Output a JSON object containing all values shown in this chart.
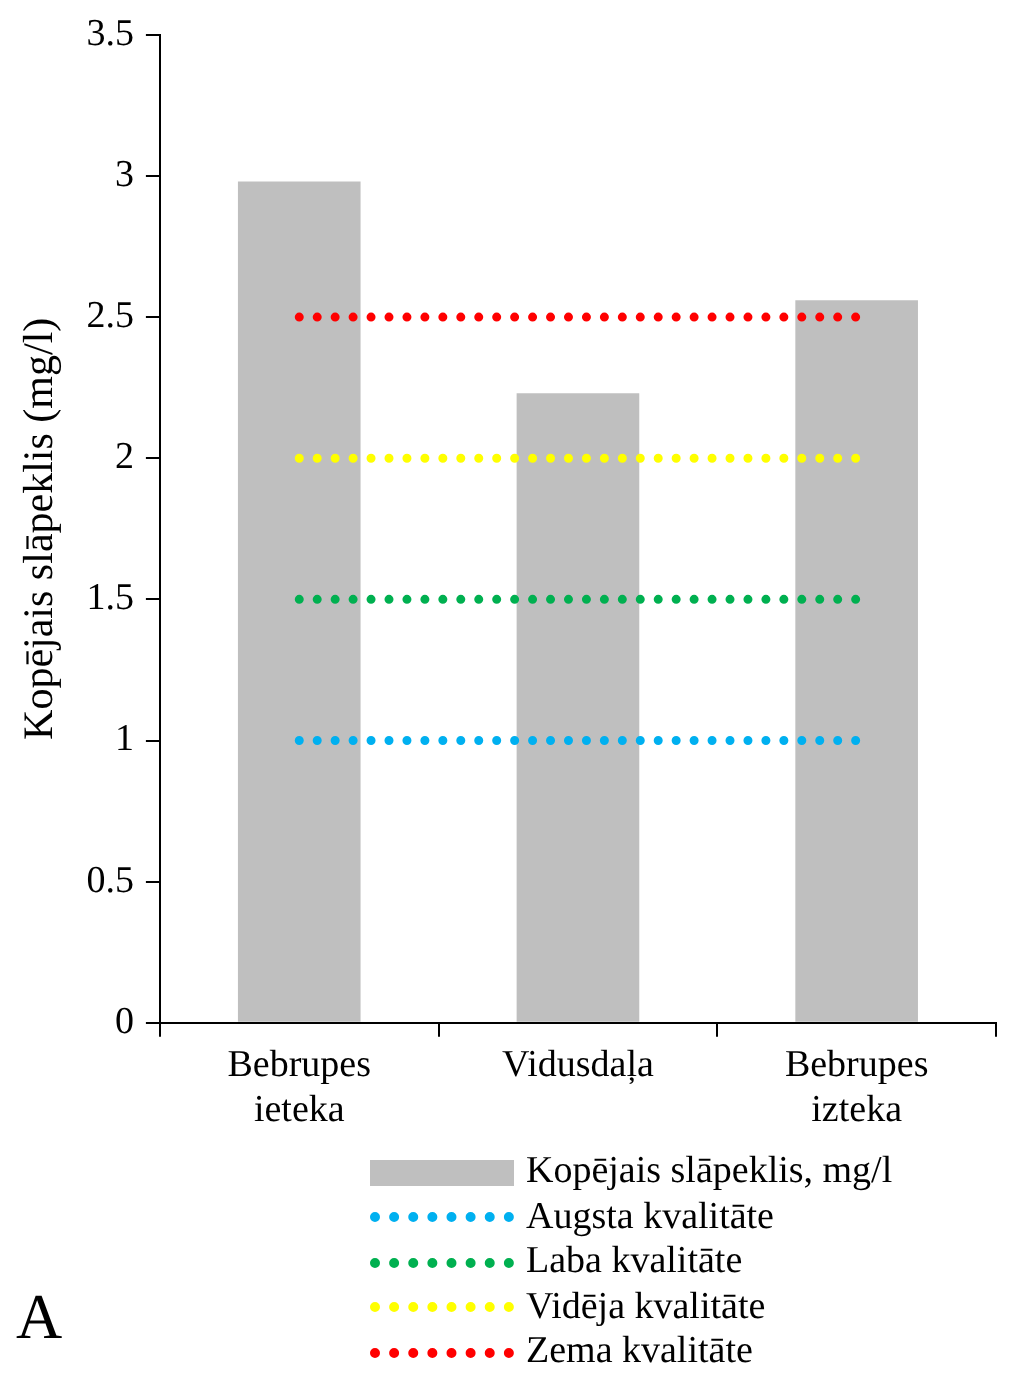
{
  "chart_data": {
    "type": "bar",
    "ylabel": "Kopējais slāpeklis (mg/l)",
    "categories": [
      "Bebrupes ieteka",
      "Vidusdaļa",
      "Bebrupes izteka"
    ],
    "series": [
      {
        "name": "Kopējais slāpeklis, mg/l",
        "color": "#bfbfbf",
        "values": [
          2.98,
          2.23,
          2.56
        ]
      },
      {
        "name": "Augsta kvalitāte",
        "type": "line",
        "color": "#00b0f0",
        "line_style": "dotted",
        "values": [
          1,
          1,
          1
        ]
      },
      {
        "name": "Laba kvalitāte",
        "type": "line",
        "color": "#00b050",
        "line_style": "dotted",
        "values": [
          1.5,
          1.5,
          1.5
        ]
      },
      {
        "name": "Vidēja kvalitāte",
        "type": "line",
        "color": "#ffff00",
        "line_style": "dotted",
        "values": [
          2,
          2,
          2
        ]
      },
      {
        "name": "Zema kvalitāte",
        "type": "line",
        "color": "#ff0000",
        "line_style": "dotted",
        "values": [
          2.5,
          2.5,
          2.5
        ]
      }
    ],
    "ylim": [
      0,
      3.5
    ],
    "yticks": [
      0,
      0.5,
      1,
      1.5,
      2,
      2.5,
      3,
      3.5
    ],
    "grid": false,
    "legend": "bottom",
    "marker": "none",
    "annotations": [
      "A"
    ]
  }
}
